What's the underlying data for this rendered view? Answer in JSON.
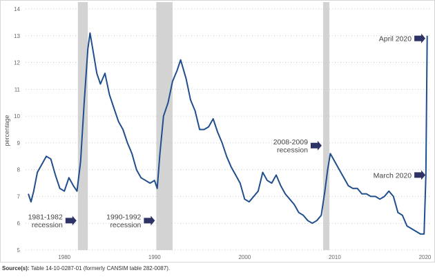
{
  "chart_data": {
    "type": "line",
    "ylabel": "percentage",
    "xlabel": "",
    "ylim": [
      5,
      14
    ],
    "xlim": [
      1976.0,
      2020.5
    ],
    "y_ticks": [
      5,
      6,
      7,
      8,
      9,
      10,
      11,
      12,
      13,
      14
    ],
    "x_ticks": [
      1980,
      1990,
      2000,
      2010,
      2020
    ],
    "grid": "horizontal dotted",
    "line_color": "#1f4e8c",
    "recession_band_color": "#d3d3d3",
    "arrow_color": "#2e3366",
    "recessions": [
      {
        "start": 1981.5,
        "end": 1982.6
      },
      {
        "start": 1990.2,
        "end": 1992.0
      },
      {
        "start": 2008.7,
        "end": 2009.4
      }
    ],
    "annotations": [
      {
        "lines": [
          "1981-1982",
          "recession"
        ],
        "x": 1981.5,
        "y": 6.1,
        "arrow": "right"
      },
      {
        "lines": [
          "1990-1992",
          "recession"
        ],
        "x": 1990.2,
        "y": 6.1,
        "arrow": "right"
      },
      {
        "lines": [
          "2008-2009",
          "recession"
        ],
        "x": 2008.7,
        "y": 8.9,
        "arrow": "right"
      },
      {
        "lines": [
          "March 2020"
        ],
        "x": 2020.2,
        "y": 7.8,
        "arrow": "right"
      },
      {
        "lines": [
          "April 2020"
        ],
        "x": 2020.2,
        "y": 12.9,
        "arrow": "right"
      }
    ],
    "series": [
      {
        "points": [
          [
            1976.0,
            7.1
          ],
          [
            1976.3,
            6.8
          ],
          [
            1976.6,
            7.2
          ],
          [
            1977.0,
            7.9
          ],
          [
            1977.5,
            8.2
          ],
          [
            1978.0,
            8.5
          ],
          [
            1978.5,
            8.4
          ],
          [
            1979.0,
            7.8
          ],
          [
            1979.5,
            7.3
          ],
          [
            1980.0,
            7.2
          ],
          [
            1980.5,
            7.7
          ],
          [
            1981.0,
            7.4
          ],
          [
            1981.4,
            7.2
          ],
          [
            1981.8,
            8.3
          ],
          [
            1982.2,
            10.5
          ],
          [
            1982.6,
            12.5
          ],
          [
            1982.85,
            13.1
          ],
          [
            1983.2,
            12.4
          ],
          [
            1983.6,
            11.6
          ],
          [
            1984.0,
            11.2
          ],
          [
            1984.5,
            11.6
          ],
          [
            1985.0,
            10.8
          ],
          [
            1985.5,
            10.3
          ],
          [
            1986.0,
            9.8
          ],
          [
            1986.5,
            9.5
          ],
          [
            1987.0,
            9.0
          ],
          [
            1987.5,
            8.6
          ],
          [
            1988.0,
            8.0
          ],
          [
            1988.5,
            7.7
          ],
          [
            1989.0,
            7.6
          ],
          [
            1989.5,
            7.5
          ],
          [
            1990.0,
            7.6
          ],
          [
            1990.3,
            7.3
          ],
          [
            1990.6,
            8.6
          ],
          [
            1991.0,
            10.0
          ],
          [
            1991.5,
            10.5
          ],
          [
            1992.0,
            11.3
          ],
          [
            1992.5,
            11.7
          ],
          [
            1992.9,
            12.1
          ],
          [
            1993.5,
            11.4
          ],
          [
            1994.0,
            10.6
          ],
          [
            1994.5,
            10.2
          ],
          [
            1995.0,
            9.5
          ],
          [
            1995.5,
            9.5
          ],
          [
            1996.0,
            9.6
          ],
          [
            1996.5,
            9.9
          ],
          [
            1997.0,
            9.4
          ],
          [
            1997.5,
            9.0
          ],
          [
            1998.0,
            8.5
          ],
          [
            1998.5,
            8.1
          ],
          [
            1999.0,
            7.8
          ],
          [
            1999.5,
            7.5
          ],
          [
            2000.0,
            6.9
          ],
          [
            2000.5,
            6.8
          ],
          [
            2001.0,
            7.0
          ],
          [
            2001.5,
            7.2
          ],
          [
            2002.0,
            7.9
          ],
          [
            2002.5,
            7.6
          ],
          [
            2003.0,
            7.5
          ],
          [
            2003.5,
            7.8
          ],
          [
            2004.0,
            7.4
          ],
          [
            2004.5,
            7.1
          ],
          [
            2005.0,
            6.9
          ],
          [
            2005.5,
            6.7
          ],
          [
            2006.0,
            6.4
          ],
          [
            2006.5,
            6.3
          ],
          [
            2007.0,
            6.1
          ],
          [
            2007.5,
            6.0
          ],
          [
            2008.0,
            6.1
          ],
          [
            2008.5,
            6.3
          ],
          [
            2008.9,
            7.2
          ],
          [
            2009.2,
            8.0
          ],
          [
            2009.5,
            8.6
          ],
          [
            2010.0,
            8.3
          ],
          [
            2010.5,
            8.0
          ],
          [
            2011.0,
            7.7
          ],
          [
            2011.5,
            7.4
          ],
          [
            2012.0,
            7.3
          ],
          [
            2012.5,
            7.3
          ],
          [
            2013.0,
            7.1
          ],
          [
            2013.5,
            7.1
          ],
          [
            2014.0,
            7.0
          ],
          [
            2014.5,
            7.0
          ],
          [
            2015.0,
            6.9
          ],
          [
            2015.5,
            7.0
          ],
          [
            2016.0,
            7.2
          ],
          [
            2016.5,
            7.0
          ],
          [
            2017.0,
            6.4
          ],
          [
            2017.5,
            6.3
          ],
          [
            2018.0,
            5.9
          ],
          [
            2018.5,
            5.8
          ],
          [
            2019.0,
            5.7
          ],
          [
            2019.5,
            5.6
          ],
          [
            2019.9,
            5.6
          ],
          [
            2020.1,
            7.8
          ],
          [
            2020.25,
            13.0
          ]
        ]
      }
    ]
  },
  "source": {
    "label": "Source(s):",
    "text": " Table 14-10-0287-01 (formerly CANSIM table 282-0087)."
  }
}
